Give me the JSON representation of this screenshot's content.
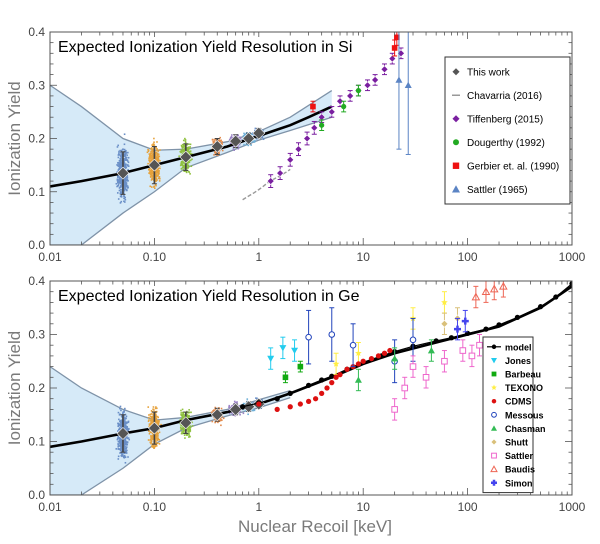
{
  "figure": {
    "xlabel": "Nuclear Recoil [keV]",
    "xticks": [
      0.01,
      0.1,
      1,
      10,
      100,
      1000
    ],
    "xtick_labels": [
      "0.01",
      "0.10",
      "1",
      "10",
      "100",
      "1000"
    ],
    "yticks": [
      0.0,
      0.1,
      0.2,
      0.3,
      0.4
    ],
    "ytick_labels": [
      "0.0",
      "0.1",
      "0.2",
      "0.3",
      "0.4"
    ],
    "colors": {
      "band": "#d6eaf8",
      "band_edge": "#7f93a8",
      "model_line": "#000000",
      "bin_colors": [
        "#6a8fc7",
        "#e6a23c",
        "#8fc13e",
        "#e28b4e",
        "#9b84c6",
        "#6fb0d8"
      ]
    }
  },
  "chart_data": [
    {
      "type": "scatter",
      "title": "Expected Ionization Yield Resolution in Si",
      "xlabel": "",
      "ylabel": "Ionization Yield",
      "xscale": "log",
      "xlim": [
        0.01,
        1000
      ],
      "ylim": [
        0,
        0.4
      ],
      "grid": false,
      "legend_position": "right",
      "model_curve": {
        "x": [
          0.01,
          0.02,
          0.05,
          0.1,
          0.2,
          0.5,
          1,
          2,
          3,
          5
        ],
        "y": [
          0.11,
          0.12,
          0.135,
          0.15,
          0.165,
          0.185,
          0.205,
          0.225,
          0.24,
          0.26
        ]
      },
      "resolution_band": {
        "x": [
          0.01,
          0.02,
          0.05,
          0.1,
          0.2,
          0.5,
          1,
          2,
          5
        ],
        "upper": [
          0.3,
          0.26,
          0.2,
          0.178,
          0.18,
          0.194,
          0.213,
          0.24,
          0.29
        ],
        "lower": [
          0.0,
          0.0,
          0.06,
          0.1,
          0.145,
          0.174,
          0.197,
          0.215,
          0.24
        ]
      },
      "series": [
        {
          "name": "This work",
          "marker": "diamond",
          "color": "#555555",
          "x": [
            0.05,
            0.1,
            0.2,
            0.4,
            0.6,
            0.8,
            1.0
          ],
          "y": [
            0.135,
            0.15,
            0.165,
            0.185,
            0.195,
            0.2,
            0.21
          ],
          "yerr": [
            0.04,
            0.035,
            0.025,
            0.015,
            0.012,
            0.01,
            0.009
          ]
        },
        {
          "name": "Chavarria (2016)",
          "marker": "dash",
          "color": "#999999",
          "x": [
            0.7,
            0.8,
            0.9,
            1.0,
            1.1,
            1.2,
            1.4,
            1.6,
            1.8,
            2.0
          ],
          "y": [
            0.085,
            0.092,
            0.098,
            0.104,
            0.11,
            0.116,
            0.124,
            0.13,
            0.136,
            0.142
          ]
        },
        {
          "name": "Tiffenberg (2015)",
          "marker": "diamond",
          "color": "#7a1fa0",
          "x": [
            1.3,
            1.6,
            2.0,
            2.4,
            2.9,
            3.4,
            4.0,
            5.0,
            6.0,
            7.5,
            9.0,
            11,
            13,
            16,
            19,
            23
          ],
          "y": [
            0.12,
            0.135,
            0.16,
            0.18,
            0.2,
            0.22,
            0.24,
            0.25,
            0.27,
            0.28,
            0.29,
            0.3,
            0.31,
            0.33,
            0.35,
            0.36
          ],
          "yerr": [
            0.012,
            0.012,
            0.012,
            0.012,
            0.012,
            0.012,
            0.01,
            0.01,
            0.01,
            0.01,
            0.01,
            0.01,
            0.01,
            0.01,
            0.01,
            0.01
          ]
        },
        {
          "name": "Dougerthy (1992)",
          "marker": "circle",
          "color": "#22aa22",
          "x": [
            4.0,
            6.5,
            9.0
          ],
          "y": [
            0.225,
            0.26,
            0.29
          ],
          "yerr": [
            0.01,
            0.01,
            0.01
          ]
        },
        {
          "name": "Gerbier et. al. (1990)",
          "marker": "square",
          "color": "#ee1111",
          "x": [
            3.3,
            20,
            21
          ],
          "y": [
            0.26,
            0.37,
            0.39
          ],
          "yerr": [
            0.01,
            0.015,
            0.015
          ]
        },
        {
          "name": "Sattler (1965)",
          "marker": "triangle",
          "color": "#5b84c4",
          "x": [
            22,
            27
          ],
          "y": [
            0.31,
            0.3
          ],
          "yerr": [
            0.13,
            0.13
          ]
        }
      ]
    },
    {
      "type": "scatter",
      "title": "Expected Ionization Yield Resolution in Ge",
      "xlabel": "Nuclear Recoil [keV]",
      "ylabel": "Ionization Yield",
      "xscale": "log",
      "xlim": [
        0.01,
        1000
      ],
      "ylim": [
        0,
        0.4
      ],
      "grid": false,
      "legend_position": "right",
      "model_curve": {
        "x": [
          0.01,
          0.02,
          0.05,
          0.1,
          0.2,
          0.5,
          1,
          2,
          5,
          10,
          20,
          50,
          100,
          200,
          500,
          1000
        ],
        "y": [
          0.09,
          0.1,
          0.115,
          0.125,
          0.14,
          0.155,
          0.17,
          0.19,
          0.22,
          0.245,
          0.265,
          0.285,
          0.3,
          0.315,
          0.35,
          0.39
        ]
      },
      "resolution_band": {
        "x": [
          0.01,
          0.02,
          0.05,
          0.1,
          0.2,
          0.5,
          1,
          2
        ],
        "upper": [
          0.24,
          0.2,
          0.16,
          0.14,
          0.145,
          0.16,
          0.178,
          0.195
        ],
        "lower": [
          0.0,
          0.0,
          0.05,
          0.095,
          0.125,
          0.148,
          0.163,
          0.182
        ]
      },
      "series": [
        {
          "name": "This work",
          "marker": "diamond",
          "color": "#555555",
          "x": [
            0.05,
            0.1,
            0.2,
            0.4,
            0.6,
            0.8,
            1.0
          ],
          "y": [
            0.115,
            0.125,
            0.135,
            0.15,
            0.16,
            0.165,
            0.17
          ],
          "yerr": [
            0.035,
            0.03,
            0.02,
            0.012,
            0.01,
            0.009,
            0.008
          ]
        },
        {
          "name": "model",
          "marker": "circle-line",
          "color": "#000000",
          "x": [
            0.7,
            1,
            1.5,
            2,
            3,
            4,
            5,
            7,
            10,
            15,
            20,
            30,
            50,
            70,
            100,
            150,
            200,
            300,
            500,
            700,
            1000
          ],
          "y": [
            0.165,
            0.172,
            0.18,
            0.19,
            0.205,
            0.215,
            0.222,
            0.235,
            0.248,
            0.26,
            0.268,
            0.278,
            0.288,
            0.294,
            0.302,
            0.31,
            0.318,
            0.332,
            0.352,
            0.37,
            0.395
          ]
        },
        {
          "name": "Jones",
          "marker": "triangle-down",
          "color": "#22ccee",
          "x": [
            1.3,
            1.7,
            2.2
          ],
          "y": [
            0.255,
            0.275,
            0.27
          ],
          "yerr": [
            0.02,
            0.02,
            0.02
          ]
        },
        {
          "name": "Barbeau",
          "marker": "square",
          "color": "#11aa11",
          "x": [
            1.8,
            2.5
          ],
          "y": [
            0.22,
            0.24
          ],
          "yerr": [
            0.01,
            0.01
          ]
        },
        {
          "name": "TEXONO",
          "marker": "star",
          "color": "#ffee44",
          "x": [
            5.5,
            9.0,
            30,
            60
          ],
          "y": [
            0.245,
            0.265,
            0.33,
            0.36
          ],
          "yerr": [
            0.02,
            0.02,
            0.02,
            0.02
          ]
        },
        {
          "name": "CDMS",
          "marker": "circle",
          "color": "#dd1111",
          "x": [
            1.0,
            1.5,
            2.0,
            2.5,
            3.0,
            3.5,
            4.0,
            4.5,
            5.0,
            5.5,
            6.0,
            7.0,
            8.0,
            9.0,
            10,
            12,
            14,
            16,
            18
          ],
          "y": [
            0.17,
            0.16,
            0.165,
            0.17,
            0.175,
            0.18,
            0.19,
            0.2,
            0.21,
            0.22,
            0.225,
            0.235,
            0.24,
            0.245,
            0.25,
            0.255,
            0.26,
            0.265,
            0.27
          ]
        },
        {
          "name": "Messous",
          "marker": "circle-open",
          "color": "#2244bb",
          "x": [
            3.0,
            5.0,
            8.0,
            20,
            30
          ],
          "y": [
            0.295,
            0.3,
            0.28,
            0.25,
            0.29
          ],
          "yerr": [
            0.05,
            0.05,
            0.04,
            0.04,
            0.04
          ]
        },
        {
          "name": "Chasman",
          "marker": "triangle",
          "color": "#33bb55",
          "x": [
            9.0,
            20,
            45
          ],
          "y": [
            0.215,
            0.255,
            0.27
          ],
          "yerr": [
            0.02,
            0.02,
            0.02
          ]
        },
        {
          "name": "Shutt",
          "marker": "diamond",
          "color": "#d9c07a",
          "x": [
            60,
            80
          ],
          "y": [
            0.32,
            0.33
          ],
          "yerr": [
            0.02,
            0.02
          ]
        },
        {
          "name": "Sattler",
          "marker": "square-open",
          "color": "#ee66cc",
          "x": [
            20,
            25,
            30,
            40,
            60,
            90,
            110,
            130
          ],
          "y": [
            0.16,
            0.2,
            0.24,
            0.22,
            0.25,
            0.27,
            0.26,
            0.28
          ],
          "yerr": [
            0.02,
            0.02,
            0.02,
            0.02,
            0.02,
            0.02,
            0.02,
            0.02
          ]
        },
        {
          "name": "Baudis",
          "marker": "triangle-open",
          "color": "#ee6655",
          "x": [
            120,
            150,
            180,
            220
          ],
          "y": [
            0.37,
            0.38,
            0.385,
            0.39
          ],
          "yerr": [
            0.02,
            0.02,
            0.02,
            0.02
          ]
        },
        {
          "name": "Simon",
          "marker": "plus",
          "color": "#4444ee",
          "x": [
            80,
            95
          ],
          "y": [
            0.31,
            0.325
          ],
          "yerr": [
            0.02,
            0.02
          ]
        }
      ]
    }
  ]
}
